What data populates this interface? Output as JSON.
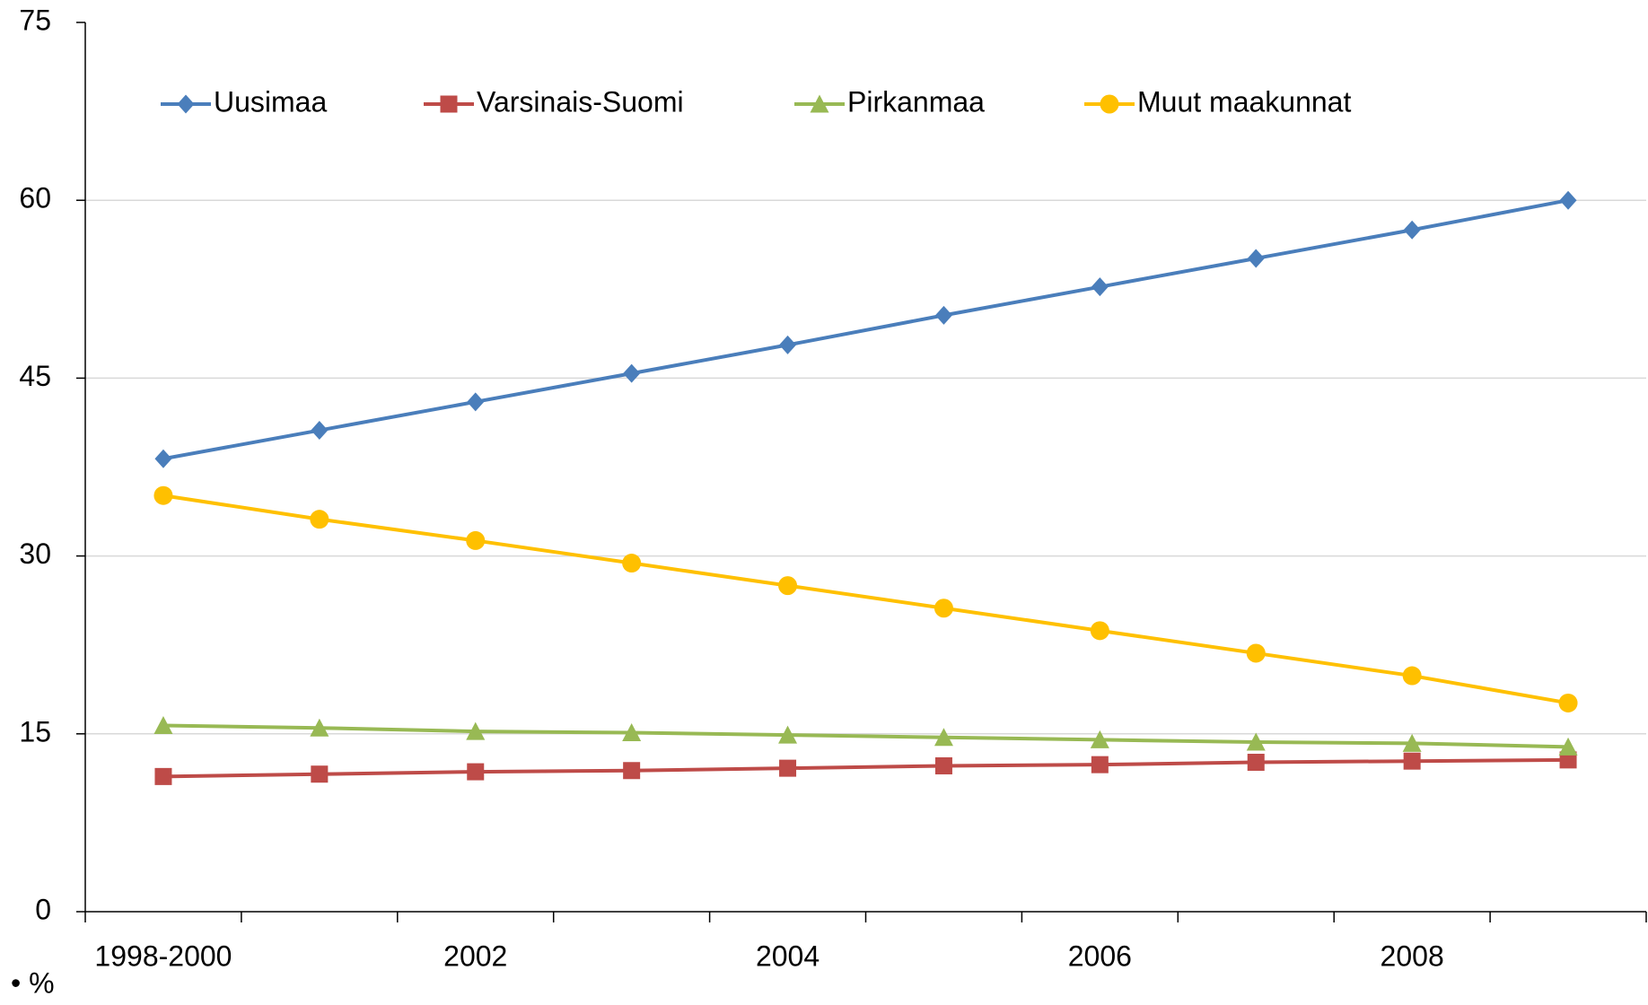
{
  "chart_data": {
    "type": "line",
    "categories": [
      "1998-2000",
      null,
      "2002",
      null,
      "2004",
      null,
      "2006",
      null,
      "2008",
      null
    ],
    "series": [
      {
        "name": "Uusimaa",
        "color": "#4a7ebb",
        "marker": "diamond",
        "values": [
          38.2,
          40.6,
          43.0,
          45.4,
          47.8,
          50.3,
          52.7,
          55.1,
          57.5,
          60.0
        ]
      },
      {
        "name": "Varsinais-Suomi",
        "color": "#be4b48",
        "marker": "square",
        "values": [
          11.4,
          11.6,
          11.8,
          11.9,
          12.1,
          12.3,
          12.4,
          12.6,
          12.7,
          12.8
        ]
      },
      {
        "name": "Pirkanmaa",
        "color": "#98b954",
        "marker": "triangle",
        "values": [
          15.7,
          15.5,
          15.2,
          15.1,
          14.9,
          14.7,
          14.5,
          14.3,
          14.2,
          13.9
        ]
      },
      {
        "name": "Muut maakunnat",
        "color": "#ffc000",
        "marker": "circle",
        "values": [
          35.1,
          33.1,
          31.3,
          29.4,
          27.5,
          25.6,
          23.7,
          21.8,
          19.9,
          17.6
        ]
      }
    ],
    "ylabel": "• %",
    "ylim": [
      0,
      75
    ],
    "yticks": [
      0,
      15,
      30,
      45,
      60,
      75
    ],
    "grid": true,
    "legend": "top"
  }
}
